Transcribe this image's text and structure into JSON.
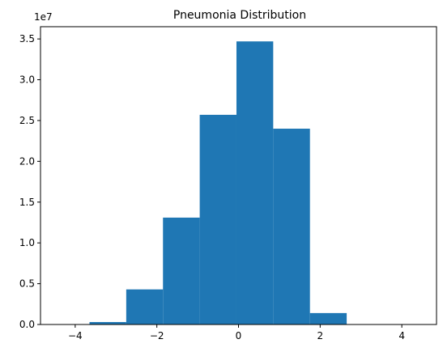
{
  "chart_data": {
    "type": "bar",
    "title": "Pneumonia Distribution",
    "xlabel": "",
    "ylabel": "",
    "y_offset_label": "1e7",
    "bar_color": "#1f77b4",
    "xlim": [
      -4.85,
      4.85
    ],
    "ylim": [
      0,
      3.65
    ],
    "x_ticks": [
      -4,
      -2,
      0,
      2,
      4
    ],
    "x_tick_labels": [
      "−4",
      "−2",
      "0",
      "2",
      "4"
    ],
    "y_ticks": [
      0,
      0.5,
      1.0,
      1.5,
      2.0,
      2.5,
      3.0,
      3.5
    ],
    "y_tick_labels": [
      "0.0",
      "0.5",
      "1.0",
      "1.5",
      "2.0",
      "2.5",
      "3.0",
      "3.5"
    ],
    "bins": [
      {
        "x0": -4.55,
        "x1": -3.65,
        "value": 0.0
      },
      {
        "x0": -3.65,
        "x1": -2.75,
        "value": 0.03
      },
      {
        "x0": -2.75,
        "x1": -1.85,
        "value": 0.43
      },
      {
        "x0": -1.85,
        "x1": -0.95,
        "value": 1.31
      },
      {
        "x0": -0.95,
        "x1": -0.05,
        "value": 2.57
      },
      {
        "x0": -0.05,
        "x1": 0.85,
        "value": 3.47
      },
      {
        "x0": 0.85,
        "x1": 1.75,
        "value": 2.4
      },
      {
        "x0": 1.75,
        "x1": 2.65,
        "value": 0.14
      },
      {
        "x0": 2.65,
        "x1": 3.55,
        "value": 0.0
      },
      {
        "x0": 3.55,
        "x1": 4.45,
        "value": 0.0
      }
    ],
    "grid": false,
    "legend": "none"
  }
}
